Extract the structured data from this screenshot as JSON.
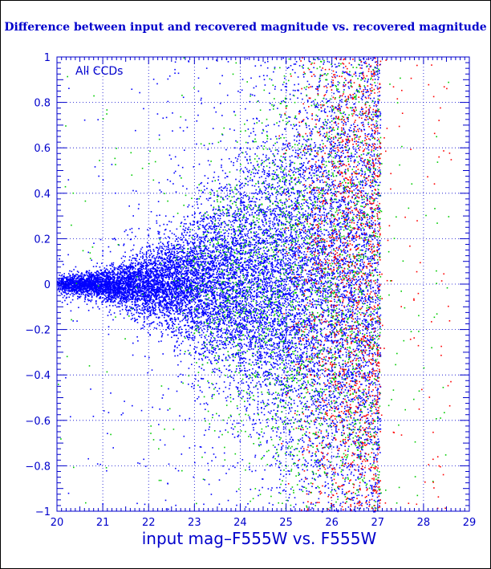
{
  "chart_data": {
    "type": "scatter",
    "title": "Difference between input and recovered magnitude vs. recovered magnitude",
    "xlabel": "input mag–F555W vs. F555W",
    "ylabel": "",
    "annotation": "All CCDs",
    "xlim": [
      20,
      29
    ],
    "ylim": [
      -1,
      1
    ],
    "x_ticks": [
      "20",
      "21",
      "22",
      "23",
      "24",
      "25",
      "26",
      "27",
      "28",
      "29"
    ],
    "y_ticks": [
      "1",
      "0.8",
      "0.6",
      "0.4",
      "0.2",
      "0",
      "−0.2",
      "−0.4",
      "−0.6",
      "−0.8",
      "−1"
    ],
    "grid": true,
    "cutoff_mag": 27.05,
    "series": [
      {
        "color": "#0000ff",
        "values_summary": "dense cloud centered at 0, spread growing from ±0.05 at mag 20 to ±0.5 at mag 27"
      },
      {
        "color": "#00cc00",
        "values_summary": "sparser points, mostly at mag 24–27, larger spread"
      },
      {
        "color": "#ff0000",
        "values_summary": "sparser points, mostly at mag 25.5–27, largest spread"
      }
    ],
    "colors": {
      "axis": "#0000cc",
      "grid": "#0000cc",
      "blue": "#0000ff",
      "green": "#00cc00",
      "red": "#ff0000"
    }
  }
}
